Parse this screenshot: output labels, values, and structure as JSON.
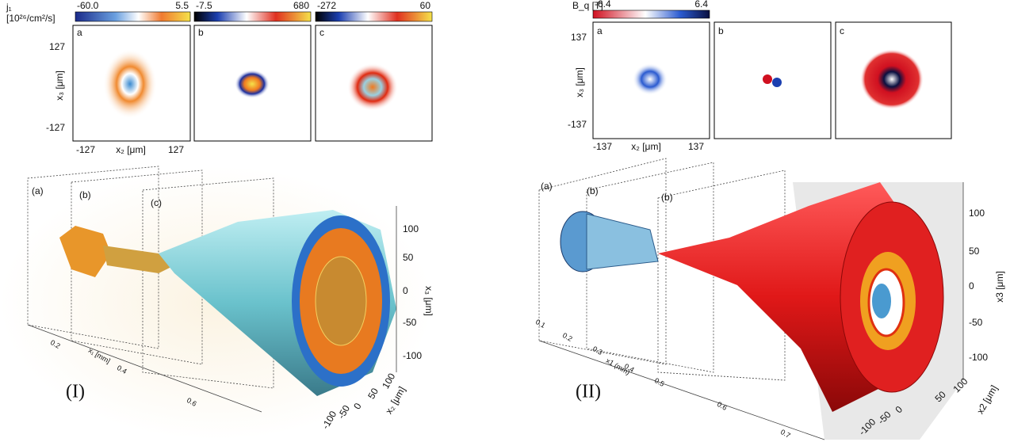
{
  "panel_I": {
    "label": "(I)",
    "colorbar_quantity": "j₁",
    "colorbar_unit": "[10²⁶/cm²/s]",
    "colorbars": [
      {
        "min": "-60.0",
        "max": "5.5"
      },
      {
        "min": "-7.5",
        "max": "680"
      },
      {
        "min": "-272",
        "max": "60"
      }
    ],
    "maps": [
      "a",
      "b",
      "c"
    ],
    "map_axes": {
      "y_ticks": [
        "127",
        "-127"
      ],
      "y_label": "x₃ [μm]",
      "x_ticks": [
        "-127",
        "127"
      ],
      "x_label": "x₂ [μm]"
    },
    "volume": {
      "plane_labels": [
        "(a)",
        "(b)",
        "(c)"
      ],
      "x1_ticks": [
        "0.2",
        "0.4",
        "0.6"
      ],
      "x1_label": "x₁ [mm]",
      "x2_ticks": [
        "100",
        "50",
        "0",
        "-50",
        "-100"
      ],
      "x2_label": "x₂ [μm]",
      "x3_ticks": [
        "100",
        "50",
        "0",
        "-50",
        "-100"
      ],
      "x3_label": "x₃ [μm]"
    }
  },
  "panel_II": {
    "label": "(II)",
    "colorbar_quantity": "B_q [T]",
    "colorbar": {
      "min": "-6.4",
      "max": "6.4"
    },
    "maps": [
      "a",
      "b",
      "c"
    ],
    "map_axes": {
      "y_ticks": [
        "137",
        "-137"
      ],
      "y_label": "x₃ [μm]",
      "x_ticks": [
        "-137",
        "137"
      ],
      "x_label": "x₂ [μm]"
    },
    "volume": {
      "plane_labels": [
        "(a)",
        "(b)",
        "(b)"
      ],
      "x1_ticks": [
        "0.1",
        "0.2",
        "0.3",
        "0.4",
        "0.5",
        "0.6",
        "0.7"
      ],
      "x1_label": "x1 (mm)",
      "x2_ticks": [
        "100",
        "50",
        "0",
        "-50",
        "-100"
      ],
      "x2_label": "x2 [μm]",
      "x3_ticks": [
        "100",
        "50",
        "0",
        "-50",
        "-100"
      ],
      "x3_label": "x3 [μm]"
    }
  }
}
